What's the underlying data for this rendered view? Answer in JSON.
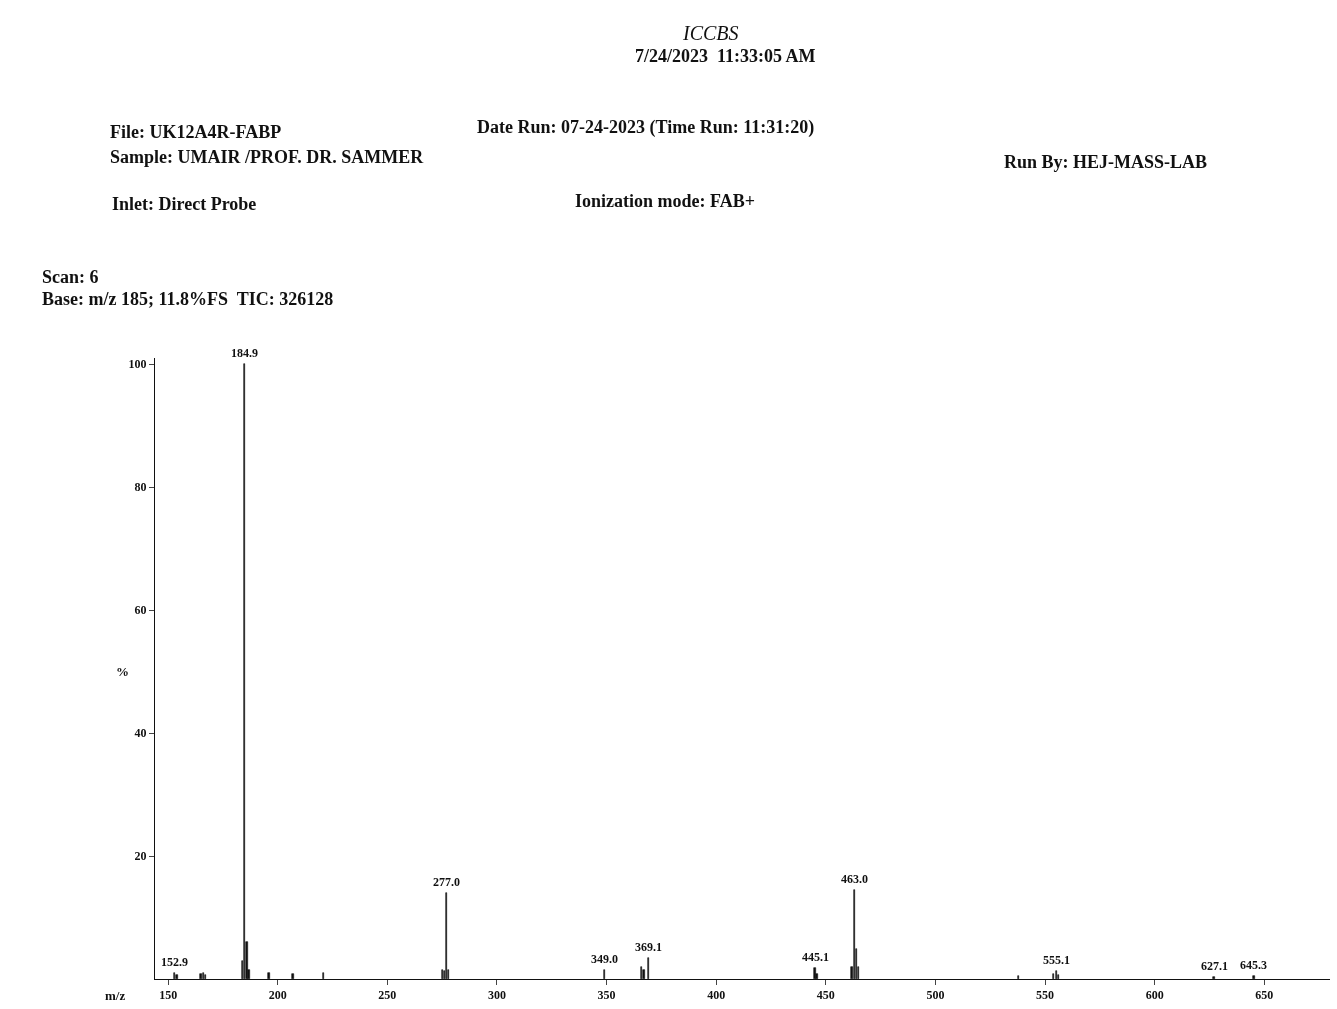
{
  "chart_data": {
    "type": "bar",
    "title": "ICCBS",
    "subtitle": "7/24/2023  11:33:05 AM",
    "xlabel": "m/z",
    "ylabel": "%",
    "x": [
      152.9,
      154,
      165,
      166,
      167,
      183.9,
      184.9,
      185.9,
      186.9,
      196,
      207,
      221,
      275,
      276,
      277.0,
      278,
      349.0,
      366,
      367,
      369.1,
      445.1,
      446,
      462,
      463.0,
      464,
      465,
      538,
      554,
      555.1,
      556,
      627.1,
      645.3
    ],
    "values": [
      1,
      0.6,
      0.8,
      1,
      0.7,
      3,
      100,
      6,
      1.5,
      1,
      0.8,
      1,
      1.5,
      1.3,
      14,
      1.5,
      1.5,
      2,
      1.5,
      3.4,
      1.8,
      0.8,
      2,
      14.5,
      4.8,
      2,
      0.5,
      0.8,
      1.3,
      0.7,
      0.4,
      0.5
    ],
    "color": "#111111",
    "xlim": [
      144,
      680
    ],
    "xticks": [
      150,
      200,
      250,
      300,
      350,
      400,
      450,
      500,
      550,
      600,
      650
    ],
    "ylim": [
      0,
      101
    ],
    "yticks": [
      20,
      40,
      60,
      80,
      100
    ],
    "annotations": [
      "File: UK12A4R-FABP",
      "Date Run: 07-24-2023 (Time Run: 11:31:20)",
      "Sample: UMAIR /PROF. DR. SAMMER",
      "Run By: HEJ-MASS-LAB",
      "Inlet: Direct Probe",
      "Ionization mode: FAB+",
      "Scan: 6",
      "Base: m/z 185; 11.8%FS  TIC: 326128",
      {
        "text": "152.9",
        "x": 152.9,
        "y": 1
      },
      {
        "text": "184.9",
        "x": 184.9,
        "y": 100
      },
      {
        "text": "277.0",
        "x": 277.0,
        "y": 14
      },
      {
        "text": "349.0",
        "x": 349.0,
        "y": 1.5
      },
      {
        "text": "369.1",
        "x": 369.1,
        "y": 3.4
      },
      {
        "text": "445.1",
        "x": 445.1,
        "y": 1.8
      },
      {
        "text": "463.0",
        "x": 463.0,
        "y": 14.5
      },
      {
        "text": "555.1",
        "x": 555.1,
        "y": 1.3
      },
      {
        "text": "627.1",
        "x": 627.1,
        "y": 0.4
      },
      {
        "text": "645.3",
        "x": 645.3,
        "y": 0.5
      }
    ]
  }
}
